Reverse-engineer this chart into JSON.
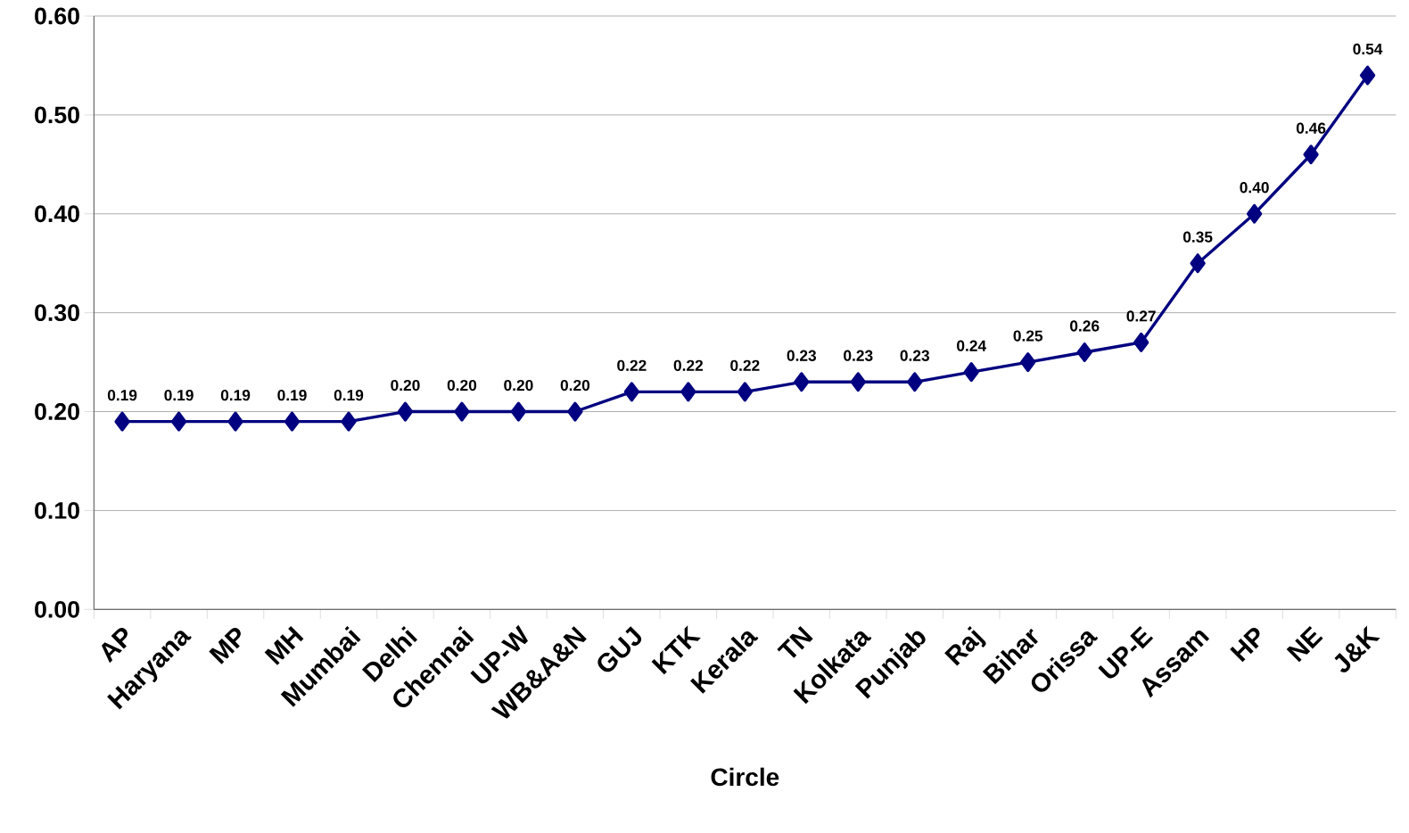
{
  "chart_data": {
    "type": "line",
    "xlabel": "Circle",
    "categories": [
      "AP",
      "Haryana",
      "MP",
      "MH",
      "Mumbai",
      "Delhi",
      "Chennai",
      "UP-W",
      "WB&A&N",
      "GUJ",
      "KTK",
      "Kerala",
      "TN",
      "Kolkata",
      "Punjab",
      "Raj",
      "Bihar",
      "Orissa",
      "UP-E",
      "Assam",
      "HP",
      "NE",
      "J&K"
    ],
    "values": [
      0.19,
      0.19,
      0.19,
      0.19,
      0.19,
      0.2,
      0.2,
      0.2,
      0.2,
      0.22,
      0.22,
      0.22,
      0.23,
      0.23,
      0.23,
      0.24,
      0.25,
      0.26,
      0.27,
      0.35,
      0.4,
      0.46,
      0.54
    ],
    "value_labels": [
      "0.19",
      "0.19",
      "0.19",
      "0.19",
      "0.19",
      "0.20",
      "0.20",
      "0.20",
      "0.20",
      "0.22",
      "0.22",
      "0.22",
      "0.23",
      "0.23",
      "0.23",
      "0.24",
      "0.25",
      "0.26",
      "0.27",
      "0.35",
      "0.40",
      "0.46",
      "0.54"
    ],
    "color": "#000080",
    "marker": "diamond",
    "line_style": "solid",
    "grid": "y",
    "ylim": [
      0,
      0.6
    ],
    "yticks": [
      {
        "value": 0,
        "label": "0.00"
      },
      {
        "value": 0.1,
        "label": "0.10"
      },
      {
        "value": 0.2,
        "label": "0.20"
      },
      {
        "value": 0.3,
        "label": "0.30"
      },
      {
        "value": 0.4,
        "label": "0.40"
      },
      {
        "value": 0.5,
        "label": "0.50"
      },
      {
        "value": 0.6,
        "label": "0.60"
      }
    ]
  }
}
